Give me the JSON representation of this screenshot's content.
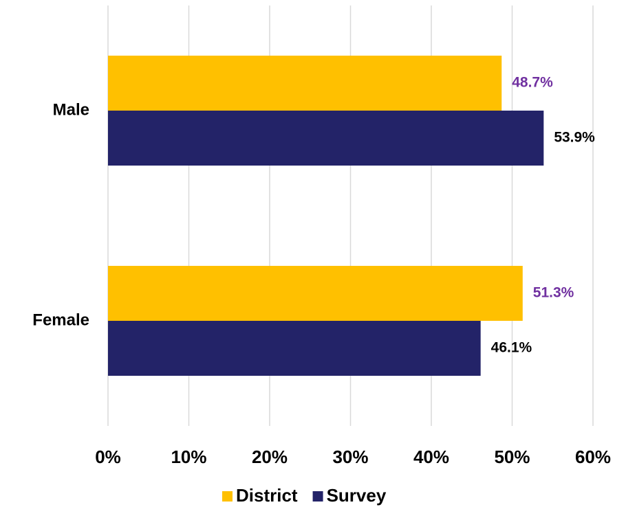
{
  "chart_data": {
    "type": "hbar",
    "categories": [
      "Male",
      "Female"
    ],
    "series": [
      {
        "name": "District",
        "color": "#ffc000",
        "label_color": "#7030a0",
        "values": [
          48.7,
          51.3
        ],
        "value_labels": [
          "48.7%",
          "51.3%"
        ]
      },
      {
        "name": "Survey",
        "color": "#232368",
        "label_color": "#000000",
        "values": [
          53.9,
          46.1
        ],
        "value_labels": [
          "53.9%",
          "46.1%"
        ]
      }
    ],
    "xlim": [
      0,
      60
    ],
    "xticks": [
      {
        "value": 0,
        "label": "0%"
      },
      {
        "value": 10,
        "label": "10%"
      },
      {
        "value": 20,
        "label": "20%"
      },
      {
        "value": 30,
        "label": "30%"
      },
      {
        "value": 40,
        "label": "40%"
      },
      {
        "value": 50,
        "label": "50%"
      },
      {
        "value": 60,
        "label": "60%"
      }
    ],
    "grid": true,
    "legend": "bottom"
  }
}
